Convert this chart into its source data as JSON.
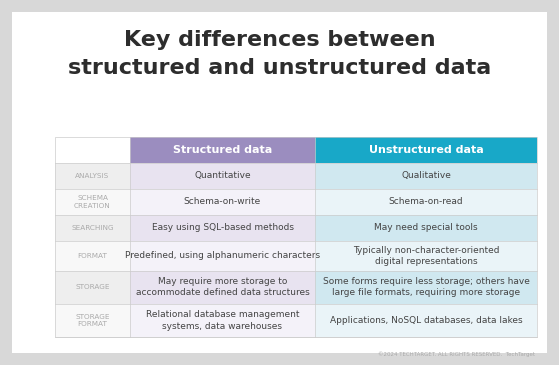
{
  "title_line1": "Key differences between",
  "title_line2": "structured and unstructured data",
  "bg_color": "#d8d8d8",
  "card_color": "#ffffff",
  "col1_header": "Structured data",
  "col2_header": "Unstructured data",
  "col1_header_color": "#9b8dbf",
  "col2_header_color": "#18a8c8",
  "header_text_color": "#ffffff",
  "row_label_color": "#aaaaaa",
  "row_labels": [
    "ANALYSIS",
    "SCHEMA\nCREATION",
    "SEARCHING",
    "FORMAT",
    "STORAGE",
    "STORAGE\nFORMAT"
  ],
  "col1_values": [
    "Quantitative",
    "Schema-on-write",
    "Easy using SQL-based methods",
    "Predefined, using alphanumeric characters",
    "May require more storage to\naccommodate defined data structures",
    "Relational database management\nsystems, data warehouses"
  ],
  "col2_values": [
    "Qualitative",
    "Schema-on-read",
    "May need special tools",
    "Typically non-character-oriented\ndigital representations",
    "Some forms require less storage; others have\nlarge file formats, requiring more storage",
    "Applications, NoSQL databases, data lakes"
  ],
  "col1_shaded": "#e8e3f0",
  "col2_shaded": "#d0e8f0",
  "col1_unshaded": "#f4f2f9",
  "col2_unshaded": "#eaf4f8",
  "row_unshaded": "#ffffff",
  "label_shaded": "#eeeeee",
  "label_unshaded": "#f8f8f8",
  "divider_color": "#cccccc",
  "text_color": "#444444",
  "footer_text": "©2024 TECHTARGET. ALL RIGHTS RESERVED.",
  "footer_brand": "TechTarget"
}
